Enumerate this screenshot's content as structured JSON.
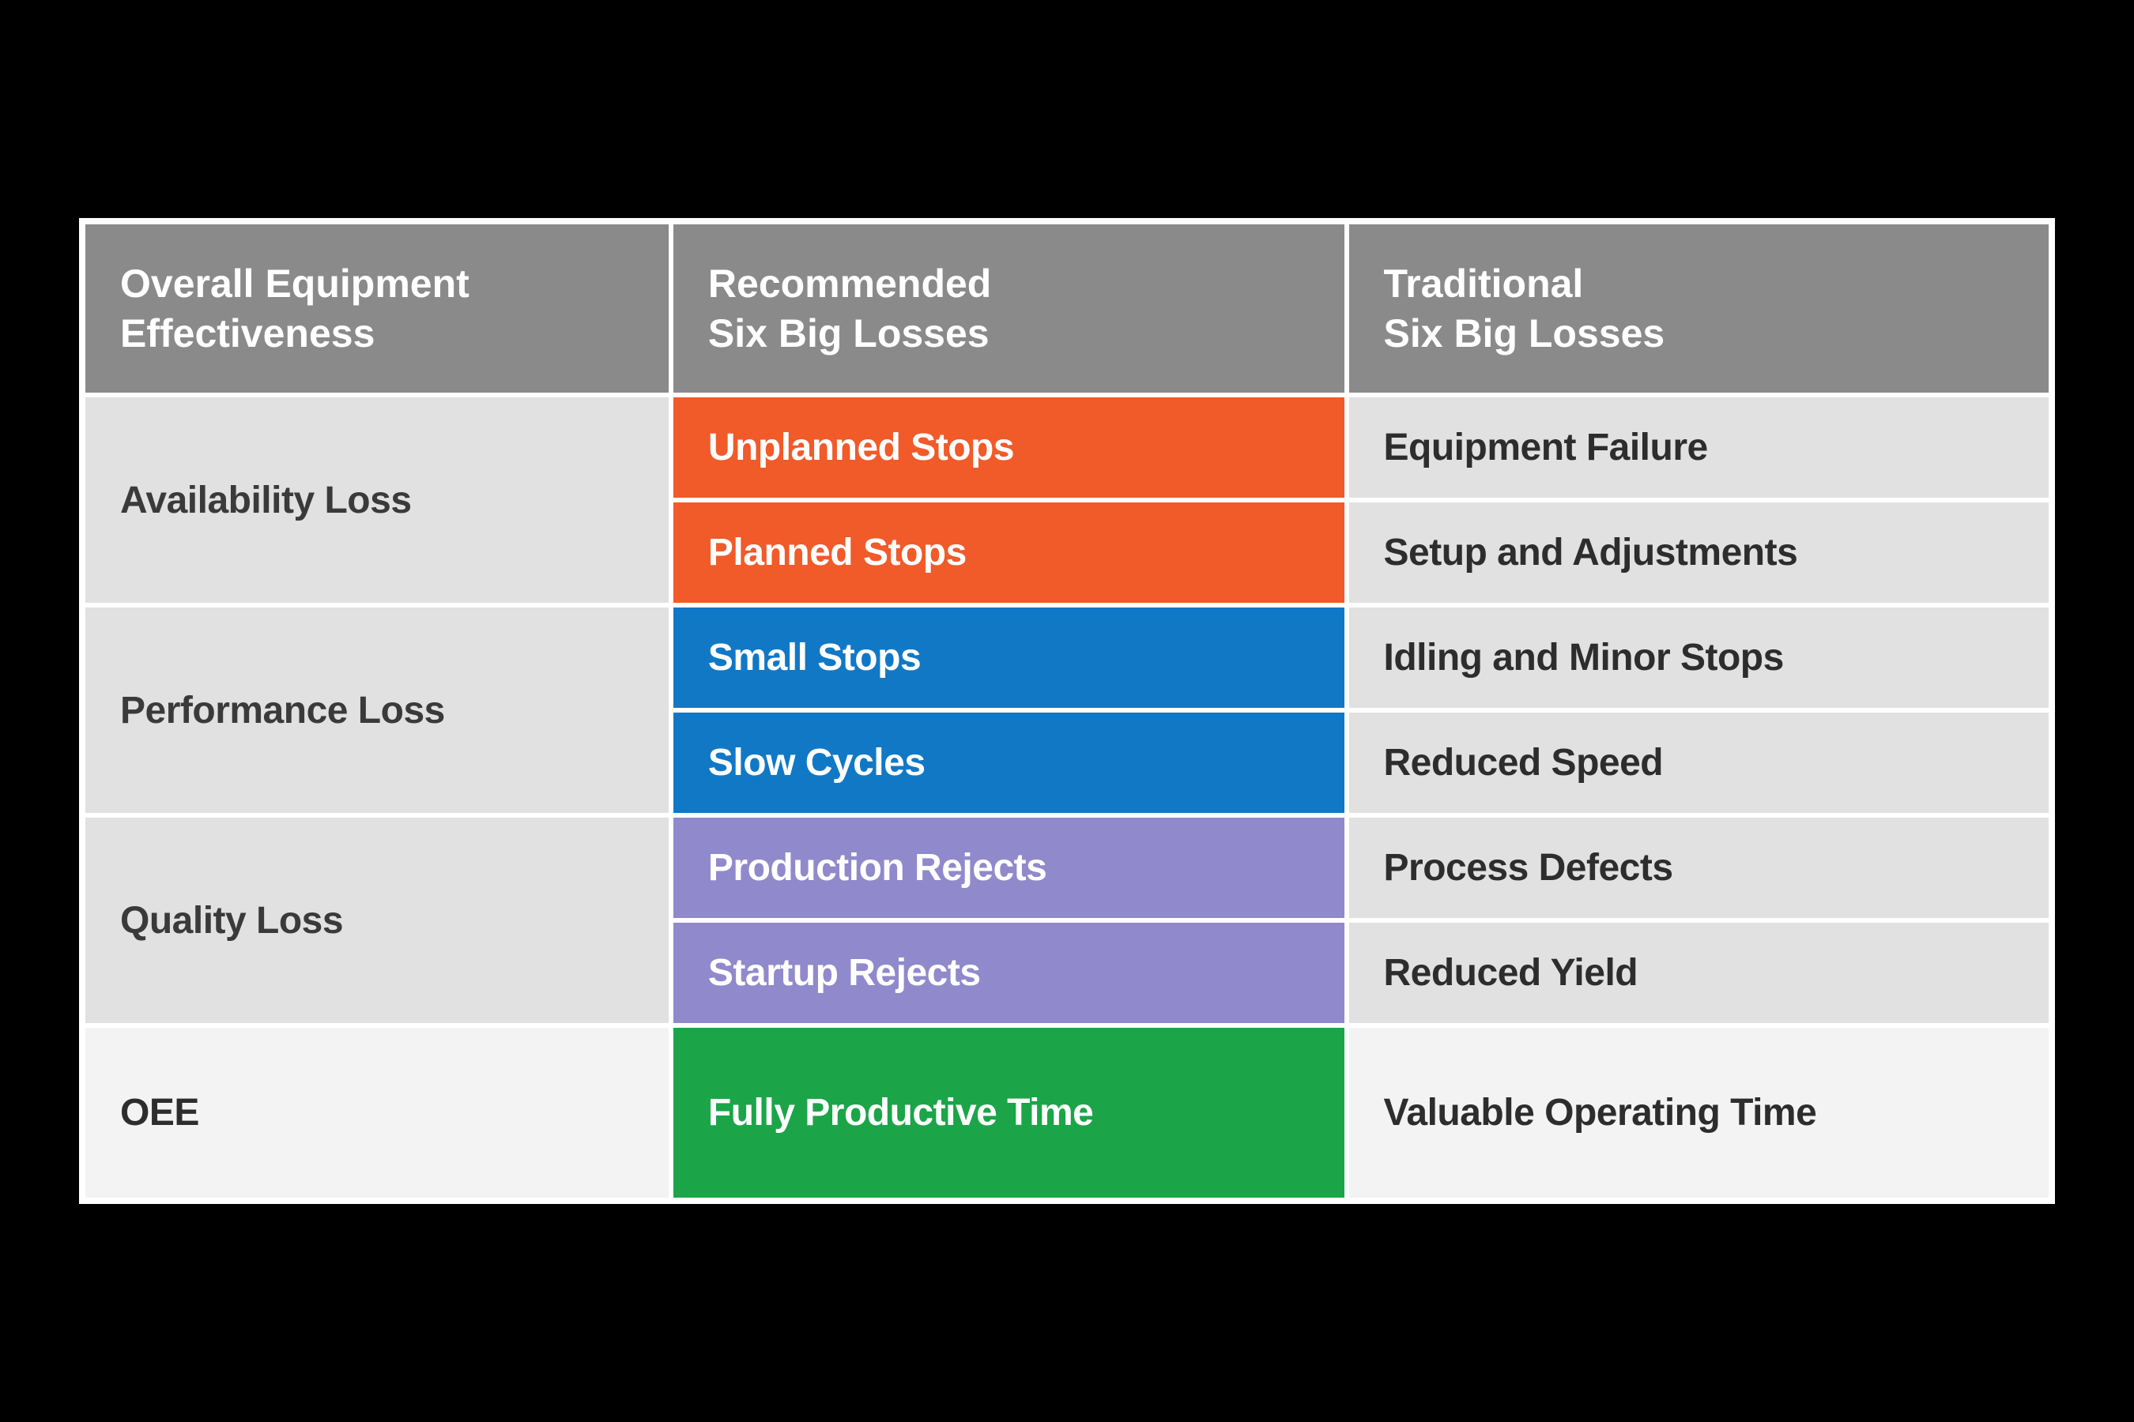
{
  "table": {
    "type": "table",
    "columns": 3,
    "headers": [
      "Overall Equipment\nEffectiveness",
      "Recommended\nSix Big Losses",
      "Traditional\nSix Big Losses"
    ],
    "header_bg": "#8a8a8a",
    "header_text_color": "#ffffff",
    "row_label_bg": "#e1e1e1",
    "row_label_text_color": "#3a3a3a",
    "trad_bg": "#e1e1e1",
    "trad_text_color": "#2d2d2d",
    "oee_bg": "#f3f3f3",
    "gap_color": "#ffffff",
    "font_size_header": 50,
    "font_size_cell": 48,
    "groups": [
      {
        "label": "Availability Loss",
        "color": "#f15a29",
        "recommended": [
          "Unplanned Stops",
          "Planned Stops"
        ],
        "traditional": [
          "Equipment Failure",
          "Setup and Adjustments"
        ]
      },
      {
        "label": "Performance Loss",
        "color": "#1178c6",
        "recommended": [
          "Small Stops",
          "Slow Cycles"
        ],
        "traditional": [
          "Idling and Minor Stops",
          "Reduced Speed"
        ]
      },
      {
        "label": "Quality Loss",
        "color": "#9089cb",
        "recommended": [
          "Production Rejects",
          "Startup Rejects"
        ],
        "traditional": [
          "Process Defects",
          "Reduced Yield"
        ]
      }
    ],
    "footer": {
      "label": "OEE",
      "color": "#1ba548",
      "recommended": "Fully Productive Time",
      "traditional": "Valuable Operating Time"
    }
  }
}
